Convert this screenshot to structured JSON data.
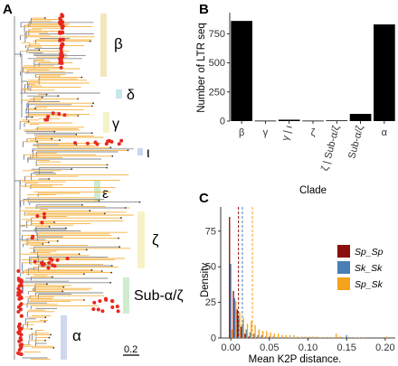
{
  "panels": {
    "A": {
      "label": "A"
    },
    "B": {
      "label": "B"
    },
    "C": {
      "label": "C"
    }
  },
  "tree": {
    "clades": [
      "β",
      "δ",
      "γ",
      "ι",
      "ε",
      "ζ",
      "Sub-α/ζ",
      "α"
    ],
    "scale_label": "0.2",
    "colors": {
      "beta": "#f3e5bd",
      "delta": "#c9e6ea",
      "gamma": "#f5f3c8",
      "iota": "#c9d6ee",
      "epsilon": "#cdebd0",
      "zeta": "#f7f2c6",
      "subaz": "#cfeccd",
      "alpha": "#cfd8ef",
      "branch_orange": "#f6b03c",
      "branch_gray": "#8a8a8a",
      "tip_red": "#e8281f"
    }
  },
  "chart_data": [
    {
      "type": "bar",
      "panel": "B",
      "categories": [
        "β",
        "γ",
        "γ | ι",
        "ζ",
        "ζ | Sub-α/ζ",
        "Sub-α/ζ",
        "α"
      ],
      "values": [
        860,
        4,
        12,
        4,
        6,
        62,
        830
      ],
      "xlabel": "Clade",
      "ylabel": "Number of LTR seq",
      "ylim": [
        0,
        900
      ],
      "yticks": [
        0,
        250,
        500,
        750
      ],
      "grid": false,
      "bar_color": "#000000"
    },
    {
      "type": "bar",
      "panel": "C",
      "xlabel": "Mean K2P distance.",
      "ylabel": "Density",
      "xlim": [
        -0.013,
        0.213
      ],
      "ylim": [
        0,
        92
      ],
      "xticks": [
        "0.00",
        "0.05",
        "0.10",
        "0.15",
        "0.20"
      ],
      "yticks": [
        0,
        25,
        50,
        75
      ],
      "legend_position": "right",
      "x": [
        0.0,
        0.005,
        0.01,
        0.015,
        0.02,
        0.025,
        0.03,
        0.035,
        0.04,
        0.045,
        0.05,
        0.055,
        0.06,
        0.065,
        0.07,
        0.075,
        0.08,
        0.085,
        0.09,
        0.095,
        0.1,
        0.105,
        0.11,
        0.115,
        0.12,
        0.125,
        0.13,
        0.135,
        0.14,
        0.145,
        0.15,
        0.155,
        0.16,
        0.165,
        0.17,
        0.175,
        0.18,
        0.185,
        0.19,
        0.195,
        0.2
      ],
      "series": [
        {
          "name": "Sp_Sp",
          "color": "#8b0f0f",
          "mean": 0.01,
          "values": [
            85,
            33,
            20,
            8,
            3,
            1,
            0.5,
            0.5,
            0.3,
            0,
            0.3,
            0,
            0,
            0,
            0,
            0,
            0,
            0,
            0,
            0,
            0,
            0,
            0,
            0,
            0,
            0,
            0,
            0,
            0,
            0,
            0,
            0,
            0,
            0,
            0,
            0,
            0,
            0,
            0,
            0,
            0
          ]
        },
        {
          "name": "Sk_Sk",
          "color": "#4a7fb5",
          "mean": 0.015,
          "values": [
            52,
            28,
            14,
            10,
            6,
            4,
            3,
            2,
            2,
            1,
            1,
            1,
            0.5,
            0.5,
            0.5,
            0.3,
            0.3,
            0,
            0.3,
            0,
            0.3,
            0,
            0,
            0.3,
            0,
            0,
            0,
            0.3,
            0,
            0,
            2,
            0,
            0,
            0,
            0,
            0,
            0,
            0,
            0,
            0,
            0
          ]
        },
        {
          "name": "Sp_Sk",
          "color": "#f6a21a",
          "mean": 0.028,
          "values": [
            6,
            26,
            18,
            14,
            10,
            12,
            9,
            6,
            5,
            5,
            4,
            3,
            3,
            2,
            2,
            2,
            2,
            1,
            1,
            1,
            1,
            1,
            1,
            0.5,
            0.5,
            0.5,
            0.5,
            3,
            1,
            0.5,
            0.5,
            0.5,
            0.3,
            0.3,
            0.3,
            0,
            0,
            0,
            0,
            0,
            1
          ]
        }
      ]
    }
  ]
}
